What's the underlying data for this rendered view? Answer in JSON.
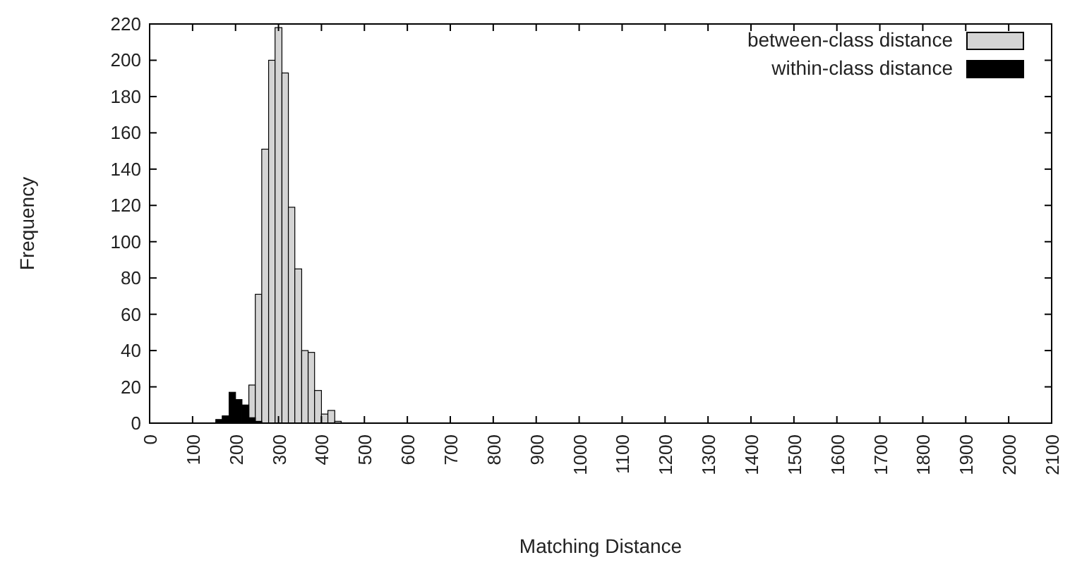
{
  "chart_data": {
    "type": "histogram",
    "xlabel": "Matching Distance",
    "ylabel": "Frequency",
    "bins": [
      154,
      169,
      185,
      200,
      215,
      231,
      246,
      261,
      277,
      292,
      308,
      323,
      338,
      354,
      369,
      384,
      400,
      415,
      431,
      446
    ],
    "series": [
      {
        "name": "between-class distance",
        "color": "#d4d4d4",
        "values": [
          null,
          null,
          null,
          null,
          null,
          21,
          71,
          151,
          200,
          218,
          193,
          119,
          85,
          40,
          39,
          18,
          5,
          7,
          1
        ]
      },
      {
        "name": "within-class distance",
        "color": "#000000",
        "values": [
          2,
          4,
          17,
          13,
          10,
          3,
          1,
          null,
          null,
          null,
          null,
          null,
          null,
          null,
          null,
          null,
          null,
          null,
          null
        ]
      }
    ],
    "xlim": [
      0,
      2100
    ],
    "xticks": [
      0,
      100,
      200,
      300,
      400,
      500,
      600,
      700,
      800,
      900,
      1000,
      1100,
      1200,
      1300,
      1400,
      1500,
      1600,
      1700,
      1800,
      1900,
      2000,
      2100
    ],
    "ylim": [
      0,
      220
    ],
    "yticks": [
      0,
      20,
      40,
      60,
      80,
      100,
      120,
      140,
      160,
      180,
      200,
      220
    ],
    "grid": false,
    "legend": "top right"
  }
}
